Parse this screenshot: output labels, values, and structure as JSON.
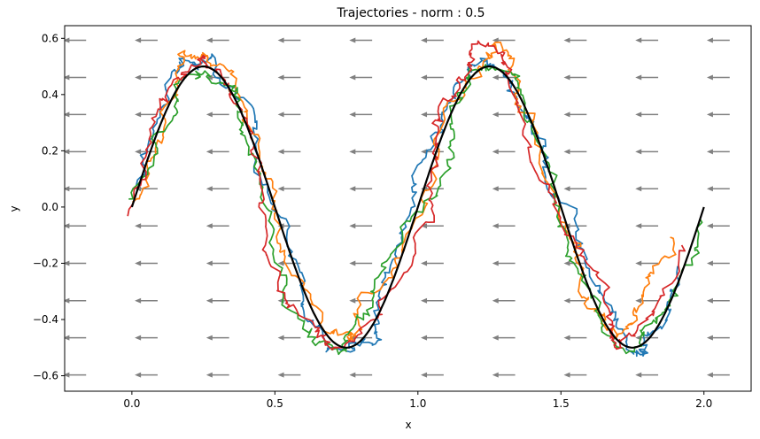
{
  "chart_data": {
    "type": "line",
    "title": "Trajectories - norm : 0.5",
    "xlabel": "x",
    "ylabel": "y",
    "xlim": [
      -0.235,
      2.165
    ],
    "ylim": [
      -0.655,
      0.645
    ],
    "x_ticks": [
      0.0,
      0.5,
      1.0,
      1.5,
      2.0
    ],
    "x_tick_labels": [
      "0.0",
      "0.5",
      "1.0",
      "1.5",
      "2.0"
    ],
    "y_ticks": [
      -0.6,
      -0.4,
      -0.2,
      0.0,
      0.2,
      0.4,
      0.6
    ],
    "y_tick_labels": [
      "−0.6",
      "−0.4",
      "−0.2",
      "0.0",
      "0.2",
      "0.4",
      "0.6"
    ],
    "grid": false,
    "vector_field": {
      "color": "#808080",
      "direction": "-x",
      "length": 0.08,
      "x": [
        -0.2,
        0.05,
        0.3,
        0.55,
        0.8,
        1.05,
        1.3,
        1.55,
        1.8,
        2.05
      ],
      "y": [
        -0.597,
        -0.465,
        -0.333,
        -0.2,
        -0.067,
        0.065,
        0.197,
        0.329,
        0.461,
        0.593
      ]
    },
    "reference_curve": {
      "color": "#000000",
      "function": "y = 0.5*sin(2*pi*x)",
      "x_range": [
        0.0,
        2.0
      ]
    },
    "trajectories": {
      "count": 4,
      "colors": [
        "#1f77b4",
        "#ff7f0e",
        "#2ca02c",
        "#d62728"
      ],
      "noise_amplitude": 0.03,
      "x_starts": [
        0.02,
        0.0,
        0.0,
        -0.01
      ],
      "x_ends": [
        1.93,
        1.95,
        1.98,
        1.96
      ]
    }
  }
}
